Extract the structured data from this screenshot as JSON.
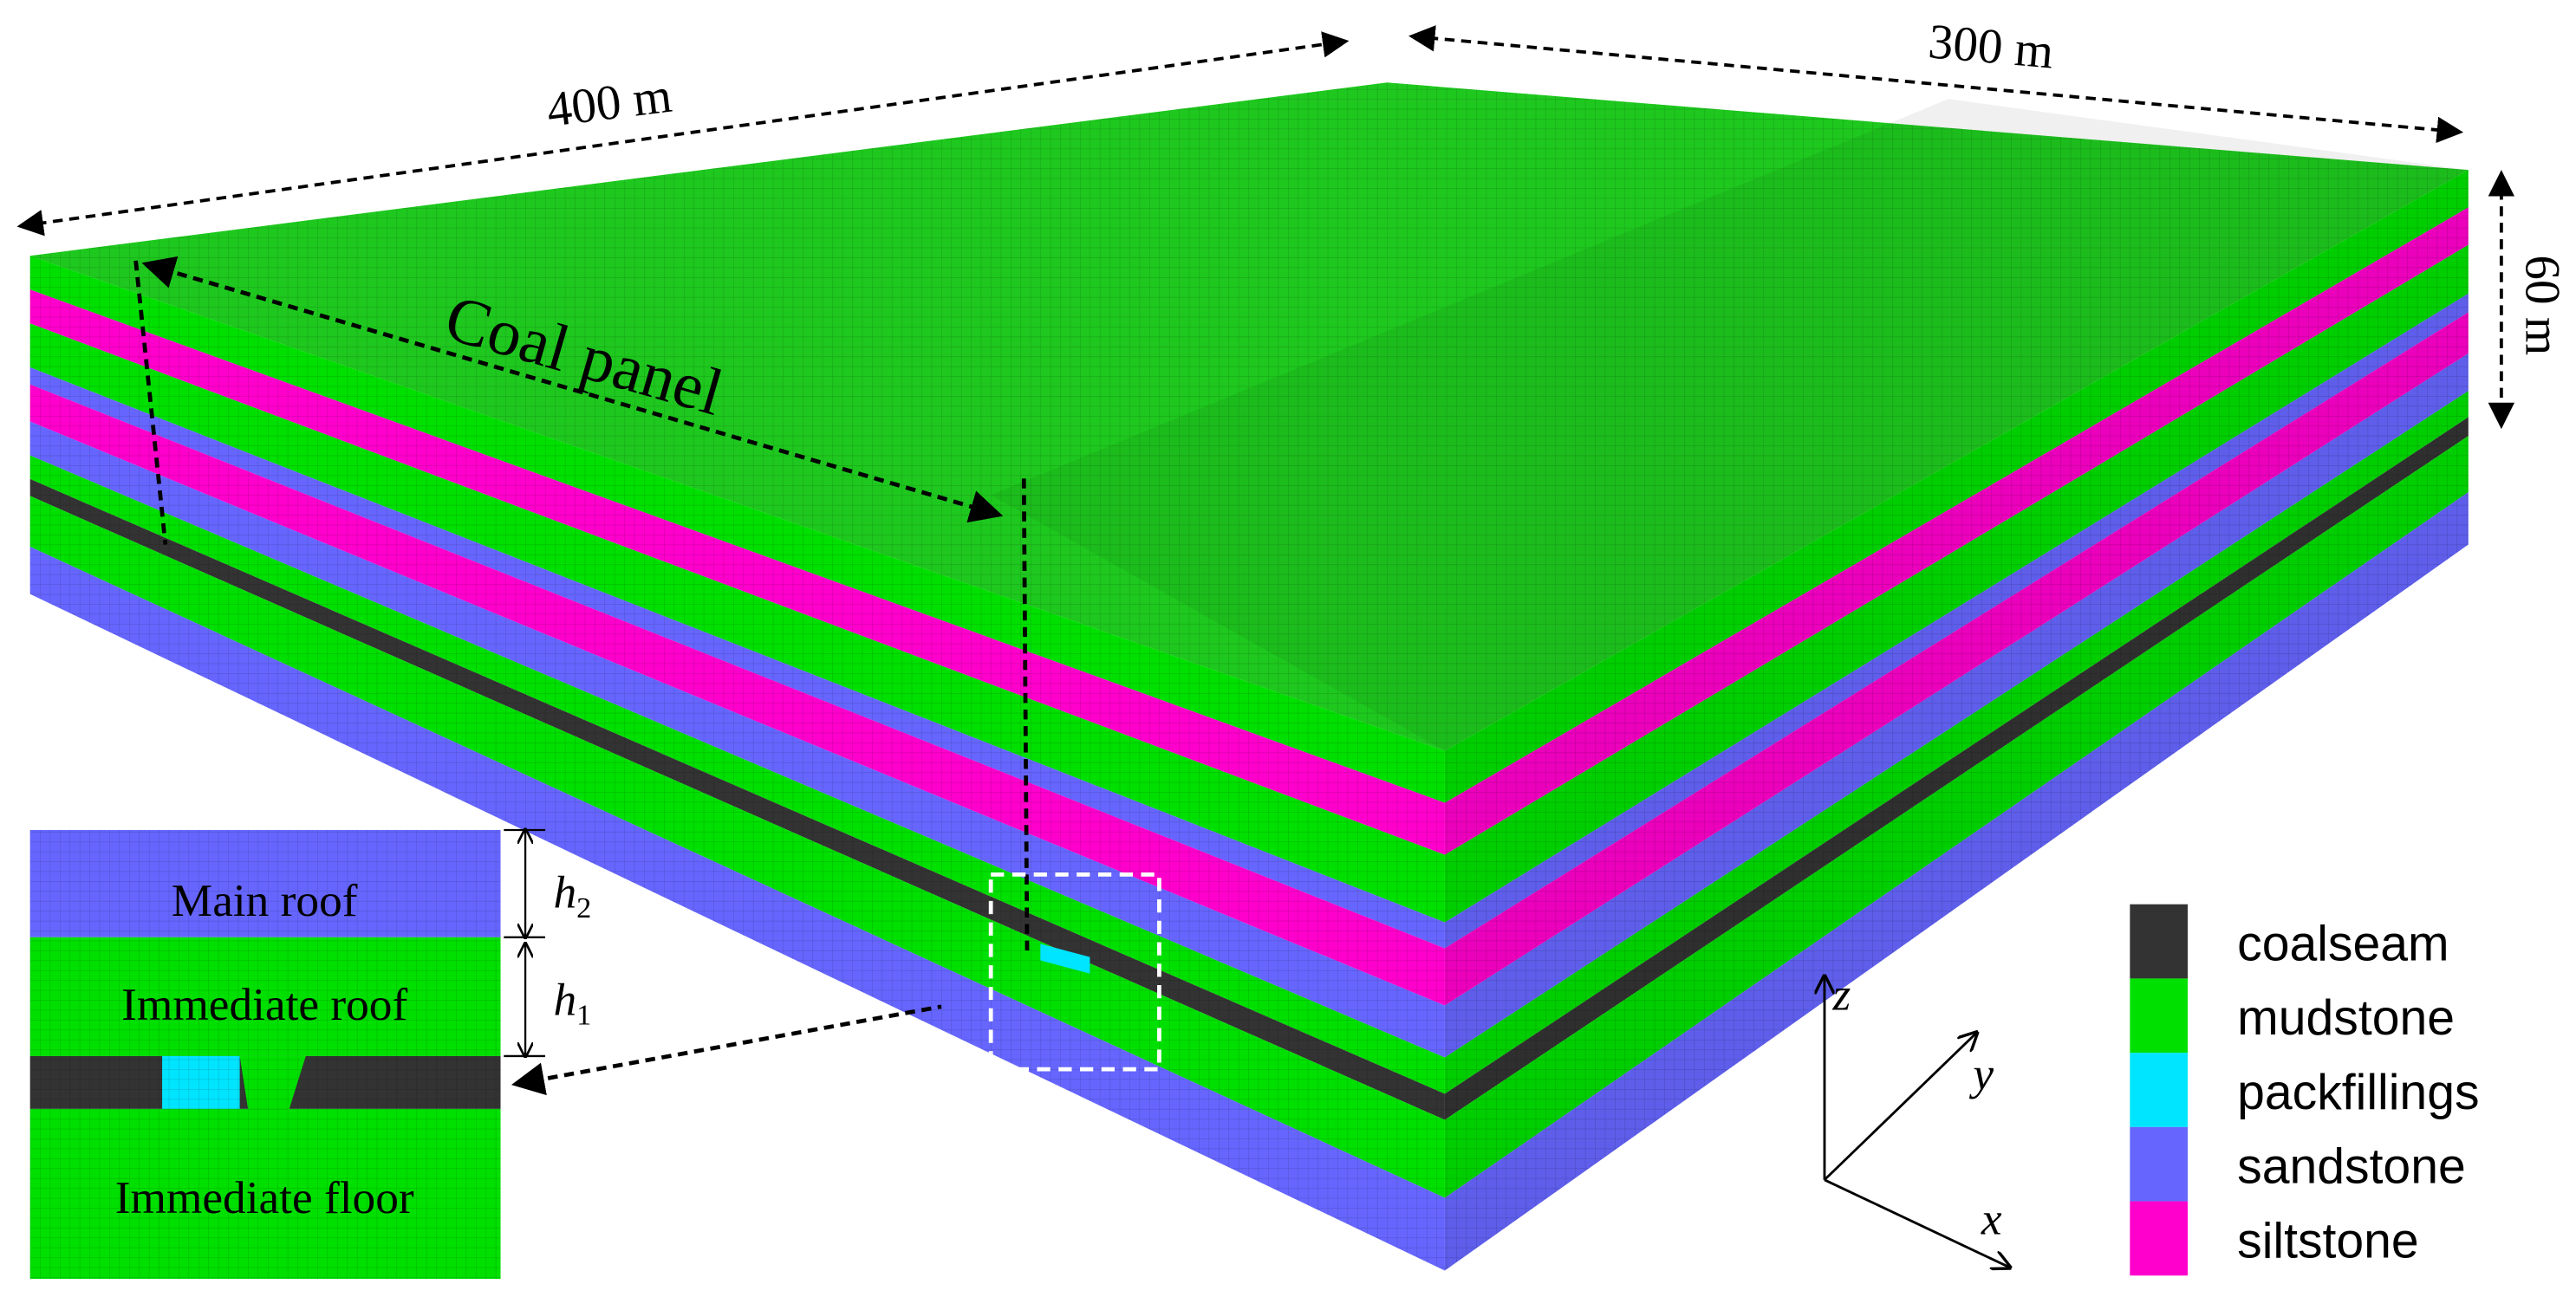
{
  "dimensions": {
    "length": "400 m",
    "width": "300 m",
    "height": "60 m"
  },
  "coal_panel_label": "Coal panel",
  "inset": {
    "main_roof": "Main roof",
    "immediate_roof": "Immediate roof",
    "immediate_floor": "Immediate floor",
    "h2": {
      "base": "h",
      "sub": "2"
    },
    "h1": {
      "base": "h",
      "sub": "1"
    }
  },
  "axes": {
    "z": "z",
    "y": "y",
    "x": "x"
  },
  "legend": [
    {
      "name": "coalseam",
      "color": "#333333"
    },
    {
      "name": "mudstone",
      "color": "#00e000"
    },
    {
      "name": "packfillings",
      "color": "#00e5ff"
    },
    {
      "name": "sandstone",
      "color": "#6666ff"
    },
    {
      "name": "siltstone",
      "color": "#ff00cc"
    }
  ]
}
